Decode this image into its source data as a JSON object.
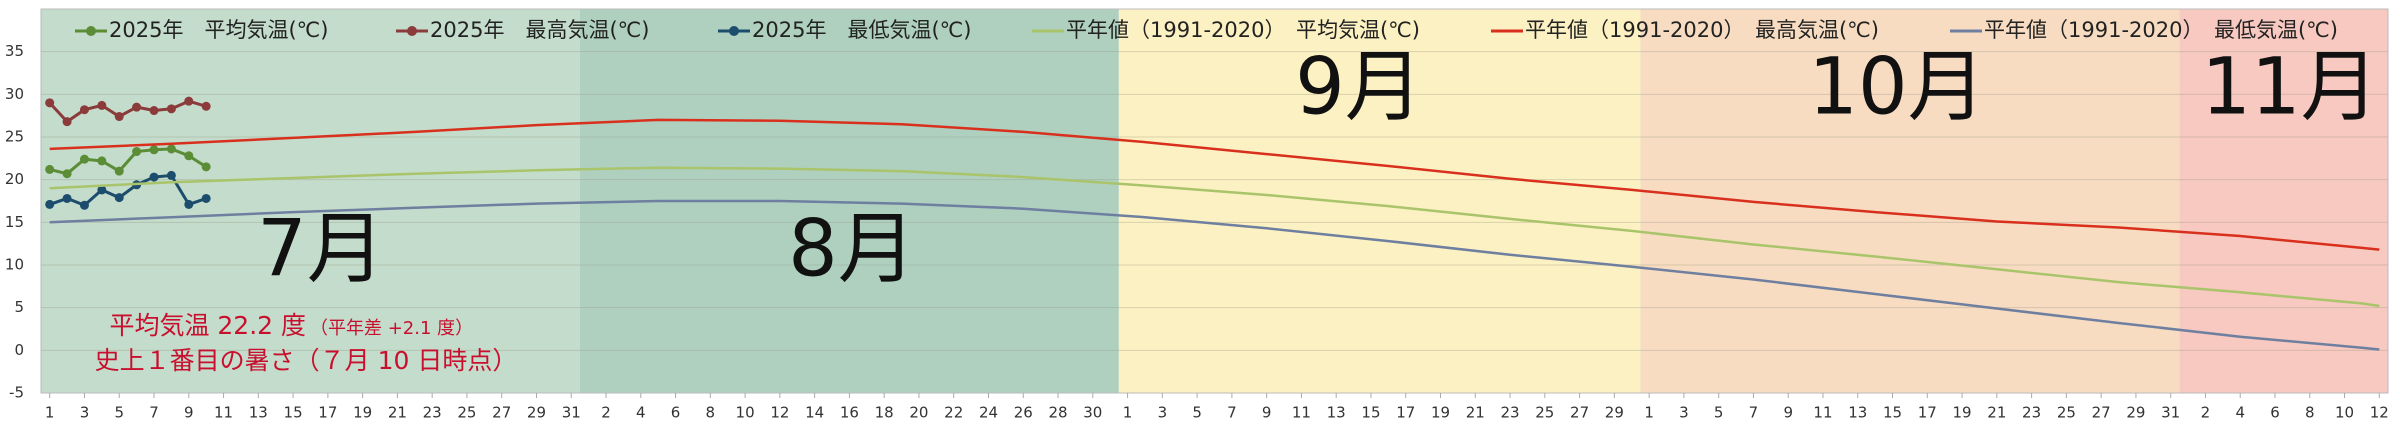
{
  "chart_data": {
    "type": "line",
    "ylim": [
      -5,
      40
    ],
    "yticks": [
      -5,
      0,
      5,
      10,
      15,
      20,
      25,
      30,
      35
    ],
    "xlim": [
      0.5,
      135.5
    ],
    "xticks": [
      1,
      3,
      5,
      7,
      9,
      11,
      13,
      15,
      17,
      19,
      21,
      23,
      25,
      27,
      29,
      31,
      {
        "value": 33,
        "label": "2"
      },
      {
        "value": 35,
        "label": "4"
      },
      {
        "value": 37,
        "label": "6"
      },
      {
        "value": 39,
        "label": "8"
      },
      {
        "value": 41,
        "label": "10"
      },
      {
        "value": 43,
        "label": "12"
      },
      {
        "value": 45,
        "label": "14"
      },
      {
        "value": 47,
        "label": "16"
      },
      {
        "value": 49,
        "label": "18"
      },
      {
        "value": 51,
        "label": "20"
      },
      {
        "value": 53,
        "label": "22"
      },
      {
        "value": 55,
        "label": "24"
      },
      {
        "value": 57,
        "label": "26"
      },
      {
        "value": 59,
        "label": "28"
      },
      {
        "value": 61,
        "label": "30"
      },
      {
        "value": 63,
        "label": "1"
      },
      {
        "value": 65,
        "label": "3"
      },
      {
        "value": 67,
        "label": "5"
      },
      {
        "value": 69,
        "label": "7"
      },
      {
        "value": 71,
        "label": "9"
      },
      {
        "value": 73,
        "label": "11"
      },
      {
        "value": 75,
        "label": "13"
      },
      {
        "value": 77,
        "label": "15"
      },
      {
        "value": 79,
        "label": "17"
      },
      {
        "value": 81,
        "label": "19"
      },
      {
        "value": 83,
        "label": "21"
      },
      {
        "value": 85,
        "label": "23"
      },
      {
        "value": 87,
        "label": "25"
      },
      {
        "value": 89,
        "label": "27"
      },
      {
        "value": 91,
        "label": "29"
      },
      {
        "value": 93,
        "label": "1"
      },
      {
        "value": 95,
        "label": "3"
      },
      {
        "value": 97,
        "label": "5"
      },
      {
        "value": 99,
        "label": "7"
      },
      {
        "value": 101,
        "label": "9"
      },
      {
        "value": 103,
        "label": "11"
      },
      {
        "value": 105,
        "label": "13"
      },
      {
        "value": 107,
        "label": "15"
      },
      {
        "value": 109,
        "label": "17"
      },
      {
        "value": 111,
        "label": "19"
      },
      {
        "value": 113,
        "label": "21"
      },
      {
        "value": 115,
        "label": "23"
      },
      {
        "value": 117,
        "label": "25"
      },
      {
        "value": 119,
        "label": "27"
      },
      {
        "value": 121,
        "label": "29"
      },
      {
        "value": 123,
        "label": "31"
      },
      {
        "value": 125,
        "label": "2"
      },
      {
        "value": 127,
        "label": "4"
      },
      {
        "value": 129,
        "label": "6"
      },
      {
        "value": 131,
        "label": "8"
      },
      {
        "value": 133,
        "label": "10"
      },
      {
        "value": 135,
        "label": "12"
      }
    ],
    "grid": true,
    "month_labels": [
      "7月",
      "8月",
      "9月",
      "10月",
      "11月"
    ],
    "band_colors": [
      "#c4dccb",
      "#afd0bf",
      "#fcf1c2",
      "#f7dcc2",
      "#f7c9c0"
    ],
    "series": [
      {
        "name": "2025年　平均気温(℃)",
        "color": "#5b8c36",
        "markers": true,
        "x": [
          1,
          2,
          3,
          4,
          5,
          6,
          7,
          8,
          9,
          10
        ],
        "values": [
          21.2,
          20.7,
          22.4,
          22.2,
          21.0,
          23.3,
          23.5,
          23.6,
          22.8,
          21.5
        ]
      },
      {
        "name": "2025年　最高気温(℃)",
        "color": "#8a3b3a",
        "markers": true,
        "x": [
          1,
          2,
          3,
          4,
          5,
          6,
          7,
          8,
          9,
          10
        ],
        "values": [
          29.0,
          26.8,
          28.2,
          28.7,
          27.4,
          28.5,
          28.1,
          28.3,
          29.2,
          28.6
        ]
      },
      {
        "name": "2025年　最低気温(℃)",
        "color": "#1d4d6d",
        "markers": true,
        "x": [
          1,
          2,
          3,
          4,
          5,
          6,
          7,
          8,
          9,
          10
        ],
        "values": [
          17.1,
          17.8,
          17.0,
          18.8,
          17.9,
          19.4,
          20.3,
          20.5,
          17.1,
          17.8
        ]
      },
      {
        "name": "平年値（1991-2020）　平均気温(℃)",
        "color": "#a9c46a",
        "markers": false,
        "x": [
          1,
          8,
          15,
          22,
          29,
          36,
          43,
          50,
          57,
          64,
          71,
          78,
          85,
          92,
          99,
          106,
          113,
          120,
          127,
          134,
          135
        ],
        "values": [
          19.0,
          19.7,
          20.2,
          20.7,
          21.1,
          21.4,
          21.3,
          21.0,
          20.3,
          19.3,
          18.2,
          16.9,
          15.4,
          14.0,
          12.4,
          11.0,
          9.5,
          8.0,
          6.8,
          5.5,
          5.2
        ]
      },
      {
        "name": "平年値（1991-2020）　最高気温(℃)",
        "color": "#d9301e",
        "markers": false,
        "x": [
          1,
          8,
          15,
          22,
          29,
          36,
          43,
          50,
          57,
          64,
          71,
          78,
          85,
          92,
          99,
          106,
          113,
          120,
          127,
          134,
          135
        ],
        "values": [
          23.6,
          24.2,
          24.9,
          25.6,
          26.4,
          27.0,
          26.9,
          26.5,
          25.6,
          24.4,
          23.0,
          21.6,
          20.1,
          18.8,
          17.4,
          16.2,
          15.1,
          14.4,
          13.4,
          12.0,
          11.8
        ]
      },
      {
        "name": "平年値（1991-2020）　最低気温(℃)",
        "color": "#6e7fa0",
        "markers": false,
        "x": [
          1,
          8,
          15,
          22,
          29,
          36,
          43,
          50,
          57,
          64,
          71,
          78,
          85,
          92,
          99,
          106,
          113,
          120,
          127,
          134,
          135
        ],
        "values": [
          15.0,
          15.6,
          16.2,
          16.7,
          17.2,
          17.5,
          17.5,
          17.2,
          16.6,
          15.6,
          14.3,
          12.8,
          11.2,
          9.8,
          8.3,
          6.6,
          4.9,
          3.2,
          1.6,
          0.3,
          0.1
        ]
      }
    ],
    "annotations": [
      "平均気温 22.2 度",
      "（平年差 +2.1 度）",
      "史上１番目の暑さ（７月 10 日時点）"
    ]
  }
}
